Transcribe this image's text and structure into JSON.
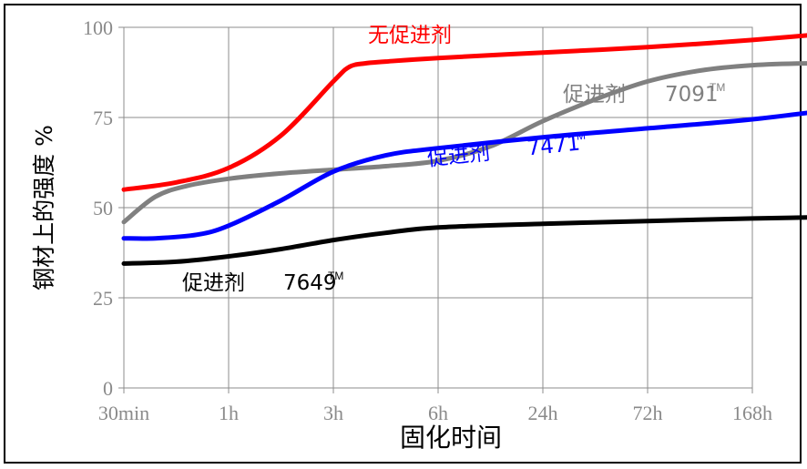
{
  "chart_data": {
    "type": "line",
    "title": "",
    "xlabel": "固化时间",
    "ylabel": "钢材上的强度 %",
    "categories": [
      "30min",
      "1h",
      "3h",
      "6h",
      "24h",
      "72h",
      "168h"
    ],
    "yticks": [
      "0",
      "25",
      "50",
      "75",
      "100"
    ],
    "ylim": [
      0,
      100
    ],
    "grid": true,
    "series": [
      {
        "name": "无促进剂",
        "color": "#ff0000",
        "x": [
          0,
          0.5,
          1,
          1.5,
          2,
          2.15,
          2.3,
          2.5,
          3,
          4,
          5,
          6,
          7
        ],
        "y": [
          55,
          57,
          61,
          70,
          85,
          89,
          90,
          90.5,
          91.5,
          93,
          94.5,
          96.5,
          99
        ]
      },
      {
        "name": "促进剂 7091™",
        "color": "#808080",
        "x": [
          0,
          0.3,
          0.6,
          1,
          1.5,
          2,
          2.5,
          3,
          3.5,
          4,
          4.5,
          5,
          5.5,
          6,
          6.5,
          7
        ],
        "y": [
          46,
          53,
          56,
          58,
          59.5,
          60.5,
          61.5,
          63,
          67,
          74,
          80,
          85,
          88,
          89.5,
          90,
          90
        ]
      },
      {
        "name": "促进剂 7471™",
        "color": "#0000ff",
        "x": [
          0,
          0.3,
          0.7,
          1,
          1.5,
          2,
          2.5,
          3,
          4,
          5,
          6,
          7
        ],
        "y": [
          41.5,
          41.5,
          42.5,
          45,
          52,
          60,
          64.5,
          66.5,
          69.5,
          72,
          74.5,
          78
        ]
      },
      {
        "name": "促进剂 7649™",
        "color": "#000000",
        "x": [
          0,
          0.5,
          1,
          1.5,
          2,
          2.5,
          3,
          4,
          5,
          6,
          7
        ],
        "y": [
          34.5,
          35,
          36.5,
          38.5,
          41,
          43,
          44.5,
          45.5,
          46.3,
          47,
          47.5
        ]
      }
    ],
    "annotations": [
      {
        "prefix": "无促进剂",
        "number": "",
        "tm": ""
      },
      {
        "prefix": "促进剂",
        "number": "7091",
        "tm": "TM"
      },
      {
        "prefix": "促进剂",
        "number": "7471",
        "tm": "TM"
      },
      {
        "prefix": "促进剂",
        "number": "7649",
        "tm": "TM"
      }
    ]
  }
}
